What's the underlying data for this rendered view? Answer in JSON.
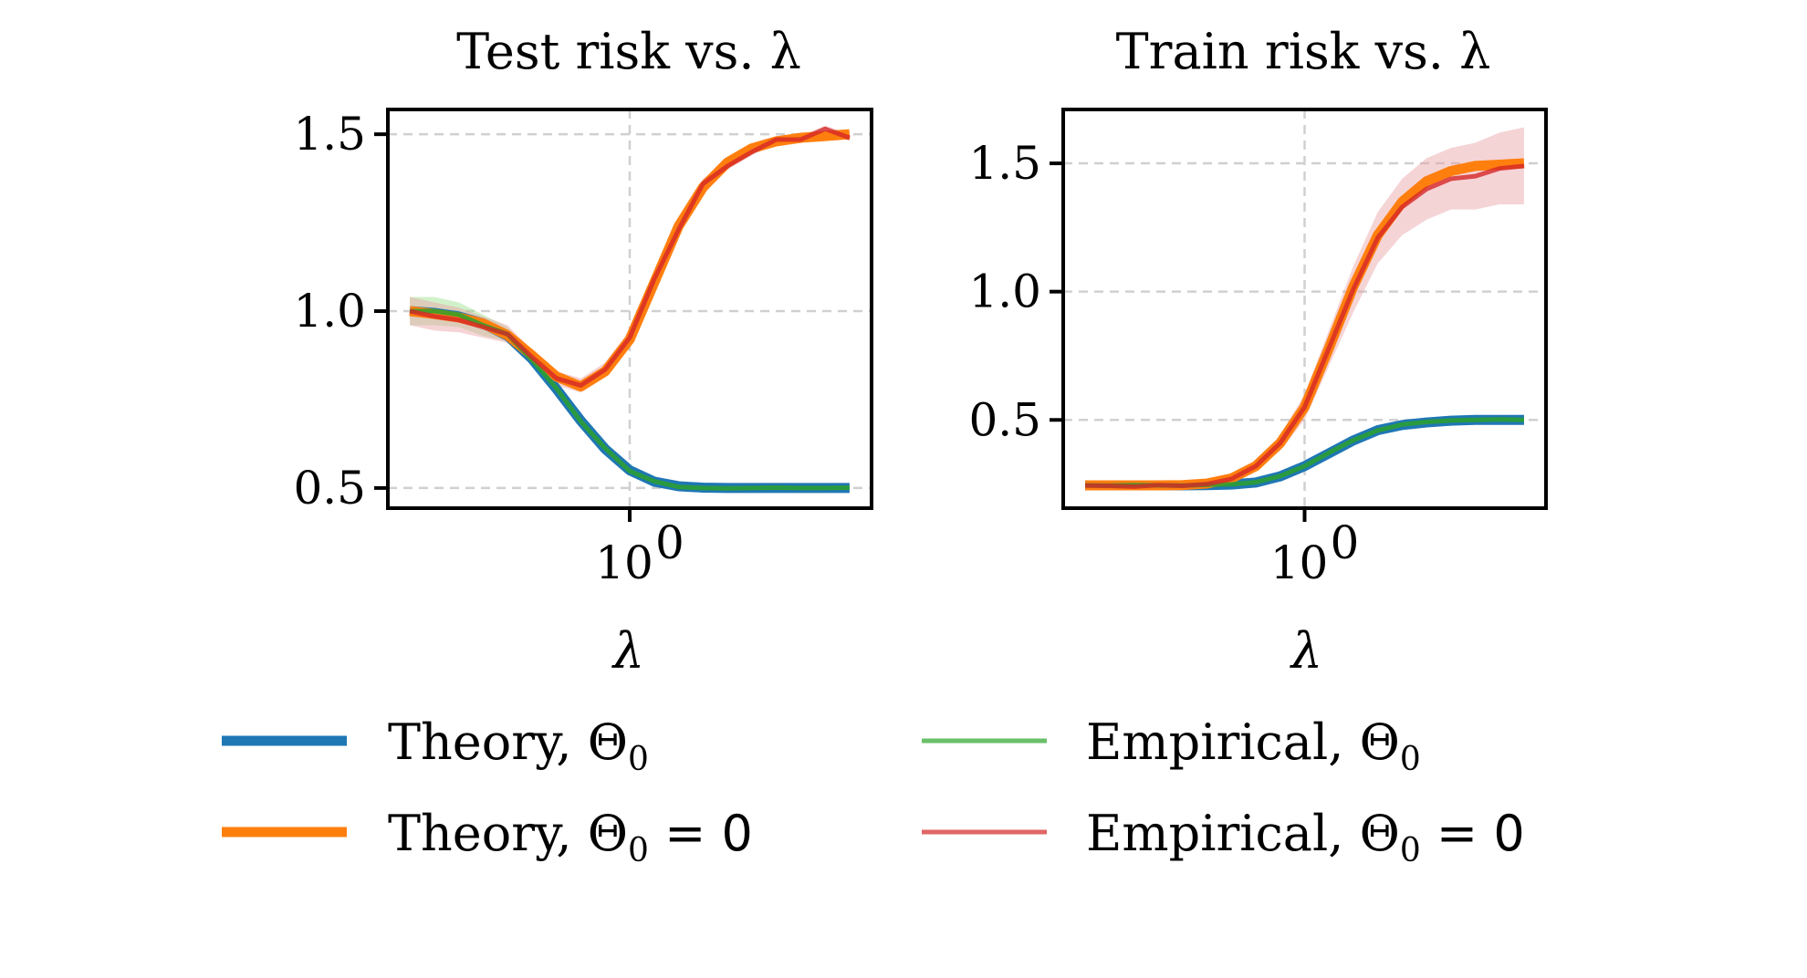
{
  "chart_data": [
    {
      "type": "line",
      "title": "Test risk vs. λ",
      "xlabel": "λ",
      "ylabel": "",
      "xscale": "log",
      "x_log10": [
        -0.9,
        -0.8,
        -0.7,
        -0.6,
        -0.5,
        -0.4,
        -0.3,
        -0.2,
        -0.1,
        0.0,
        0.1,
        0.2,
        0.3,
        0.4,
        0.5,
        0.6,
        0.7,
        0.8,
        0.9
      ],
      "xlim_log10": [
        -0.99,
        0.99
      ],
      "ylim": [
        0.443,
        1.57
      ],
      "xticks": [
        {
          "log10": 0,
          "label": "10",
          "sup": "0"
        }
      ],
      "yticks": [
        {
          "value": 0.5,
          "label": "0.5"
        },
        {
          "value": 1.0,
          "label": "1.0"
        },
        {
          "value": 1.5,
          "label": "1.5"
        }
      ],
      "grid": true,
      "series": [
        {
          "name": "Theory, Θ0",
          "values": [
            1.0,
            0.995,
            0.985,
            0.965,
            0.93,
            0.865,
            0.78,
            0.69,
            0.61,
            0.55,
            0.518,
            0.505,
            0.501,
            0.5,
            0.5,
            0.5,
            0.5,
            0.5,
            0.5
          ]
        },
        {
          "name": "Theory, Θ0 = 0",
          "values": [
            1.0,
            0.992,
            0.982,
            0.965,
            0.932,
            0.875,
            0.815,
            0.787,
            0.83,
            0.92,
            1.08,
            1.24,
            1.35,
            1.42,
            1.46,
            1.48,
            1.49,
            1.495,
            1.5
          ]
        },
        {
          "name": "Empirical, Θ0",
          "values": [
            1.0,
            1.0,
            0.99,
            0.96,
            0.935,
            0.862,
            0.782,
            0.688,
            0.612,
            0.548,
            0.519,
            0.503,
            0.5,
            0.499,
            0.5,
            0.501,
            0.5,
            0.5,
            0.501
          ],
          "band": [
            0.04,
            0.04,
            0.035,
            0.03,
            0.02,
            0.01,
            0.008,
            0.006,
            0.005,
            0.004,
            0.004,
            0.003,
            0.003,
            0.003,
            0.003,
            0.003,
            0.003,
            0.003,
            0.003
          ]
        },
        {
          "name": "Empirical, Θ0 = 0",
          "values": [
            1.0,
            0.985,
            0.975,
            0.955,
            0.935,
            0.87,
            0.81,
            0.79,
            0.835,
            0.925,
            1.09,
            1.23,
            1.36,
            1.41,
            1.45,
            1.485,
            1.485,
            1.515,
            1.49
          ],
          "band": [
            0.04,
            0.04,
            0.035,
            0.03,
            0.025,
            0.02,
            0.02,
            0.02,
            0.02,
            0.02,
            0.02,
            0.015,
            0.015,
            0.01,
            0.01,
            0.01,
            0.01,
            0.01,
            0.01
          ]
        }
      ]
    },
    {
      "type": "line",
      "title": "Train risk vs. λ",
      "xlabel": "λ",
      "ylabel": "",
      "xscale": "log",
      "x_log10": [
        -0.9,
        -0.8,
        -0.7,
        -0.6,
        -0.5,
        -0.4,
        -0.3,
        -0.2,
        -0.1,
        0.0,
        0.1,
        0.2,
        0.3,
        0.4,
        0.5,
        0.6,
        0.7,
        0.8,
        0.9
      ],
      "xlim_log10": [
        -0.99,
        0.99
      ],
      "ylim": [
        0.156,
        1.71
      ],
      "xticks": [
        {
          "log10": 0,
          "label": "10",
          "sup": "0"
        }
      ],
      "yticks": [
        {
          "value": 0.5,
          "label": "0.5"
        },
        {
          "value": 1.0,
          "label": "1.0"
        },
        {
          "value": 1.5,
          "label": "1.5"
        }
      ],
      "grid": true,
      "series": [
        {
          "name": "Theory, Θ0",
          "values": [
            0.245,
            0.245,
            0.245,
            0.245,
            0.245,
            0.246,
            0.248,
            0.256,
            0.28,
            0.32,
            0.37,
            0.42,
            0.46,
            0.48,
            0.49,
            0.497,
            0.5,
            0.5,
            0.5
          ]
        },
        {
          "name": "Theory, Θ0 = 0",
          "values": [
            0.245,
            0.245,
            0.245,
            0.245,
            0.246,
            0.252,
            0.272,
            0.32,
            0.41,
            0.55,
            0.78,
            1.02,
            1.22,
            1.35,
            1.43,
            1.47,
            1.49,
            1.495,
            1.5
          ]
        },
        {
          "name": "Empirical, Θ0",
          "values": [
            0.245,
            0.244,
            0.246,
            0.245,
            0.244,
            0.247,
            0.249,
            0.257,
            0.281,
            0.32,
            0.372,
            0.421,
            0.459,
            0.482,
            0.492,
            0.498,
            0.5,
            0.502,
            0.5
          ],
          "band": [
            0.005,
            0.005,
            0.005,
            0.005,
            0.005,
            0.005,
            0.005,
            0.006,
            0.006,
            0.007,
            0.008,
            0.009,
            0.01,
            0.01,
            0.012,
            0.012,
            0.012,
            0.012,
            0.012
          ]
        },
        {
          "name": "Empirical, Θ0 = 0",
          "values": [
            0.244,
            0.243,
            0.24,
            0.246,
            0.243,
            0.25,
            0.27,
            0.32,
            0.41,
            0.55,
            0.78,
            1.01,
            1.21,
            1.33,
            1.4,
            1.44,
            1.45,
            1.48,
            1.49
          ],
          "band": [
            0.01,
            0.01,
            0.01,
            0.01,
            0.01,
            0.01,
            0.012,
            0.02,
            0.03,
            0.05,
            0.07,
            0.09,
            0.1,
            0.11,
            0.12,
            0.12,
            0.13,
            0.14,
            0.15
          ]
        }
      ]
    }
  ],
  "legend": {
    "items": [
      {
        "label": "Theory, Θ",
        "sub": "0",
        "suffix": "",
        "color": "#1f77b4"
      },
      {
        "label": "Empirical, Θ",
        "sub": "0",
        "suffix": "",
        "color": "#6abf69"
      },
      {
        "label": "Theory, Θ",
        "sub": "0",
        "suffix": " = 0",
        "color": "#ff7f0e"
      },
      {
        "label": "Empirical, Θ",
        "sub": "0",
        "suffix": " = 0",
        "color": "#e06666"
      }
    ]
  },
  "colors": {
    "theory_theta0": "#1f77b4",
    "theory_zero": "#ff7f0e",
    "empirical_theta0": "#2ca02c",
    "empirical_zero": "#d62728",
    "grid": "#d0d0d0"
  }
}
